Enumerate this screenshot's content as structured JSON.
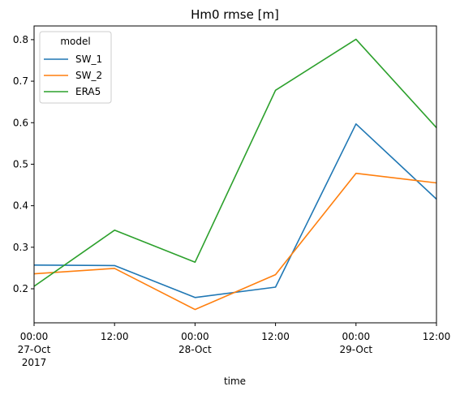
{
  "chart_data": {
    "type": "line",
    "title": "Hm0 rmse [m]",
    "xlabel": "time",
    "ylabel": "",
    "x": [
      "2017-10-27 00:00",
      "2017-10-27 12:00",
      "2017-10-28 00:00",
      "2017-10-28 12:00",
      "2017-10-29 00:00",
      "2017-10-29 12:00"
    ],
    "x_ticks": [
      {
        "lines": [
          "00:00",
          "27-Oct",
          "2017"
        ]
      },
      {
        "lines": [
          "12:00"
        ]
      },
      {
        "lines": [
          "00:00",
          "28-Oct"
        ]
      },
      {
        "lines": [
          "12:00"
        ]
      },
      {
        "lines": [
          "00:00",
          "29-Oct"
        ]
      },
      {
        "lines": [
          "12:00"
        ]
      }
    ],
    "ylim": [
      0.118,
      0.833
    ],
    "y_ticks": [
      "0.2",
      "0.3",
      "0.4",
      "0.5",
      "0.6",
      "0.7",
      "0.8"
    ],
    "legend": {
      "title": "model",
      "placement": "upper-left"
    },
    "grid": false,
    "series": [
      {
        "name": "SW_1",
        "color": "#1f77b4",
        "values": [
          0.257,
          0.256,
          0.179,
          0.204,
          0.597,
          0.416
        ]
      },
      {
        "name": "SW_2",
        "color": "#ff7f0e",
        "values": [
          0.236,
          0.249,
          0.15,
          0.234,
          0.478,
          0.455
        ]
      },
      {
        "name": "ERA5",
        "color": "#2ca02c",
        "values": [
          0.206,
          0.341,
          0.264,
          0.678,
          0.801,
          0.588
        ]
      }
    ]
  }
}
